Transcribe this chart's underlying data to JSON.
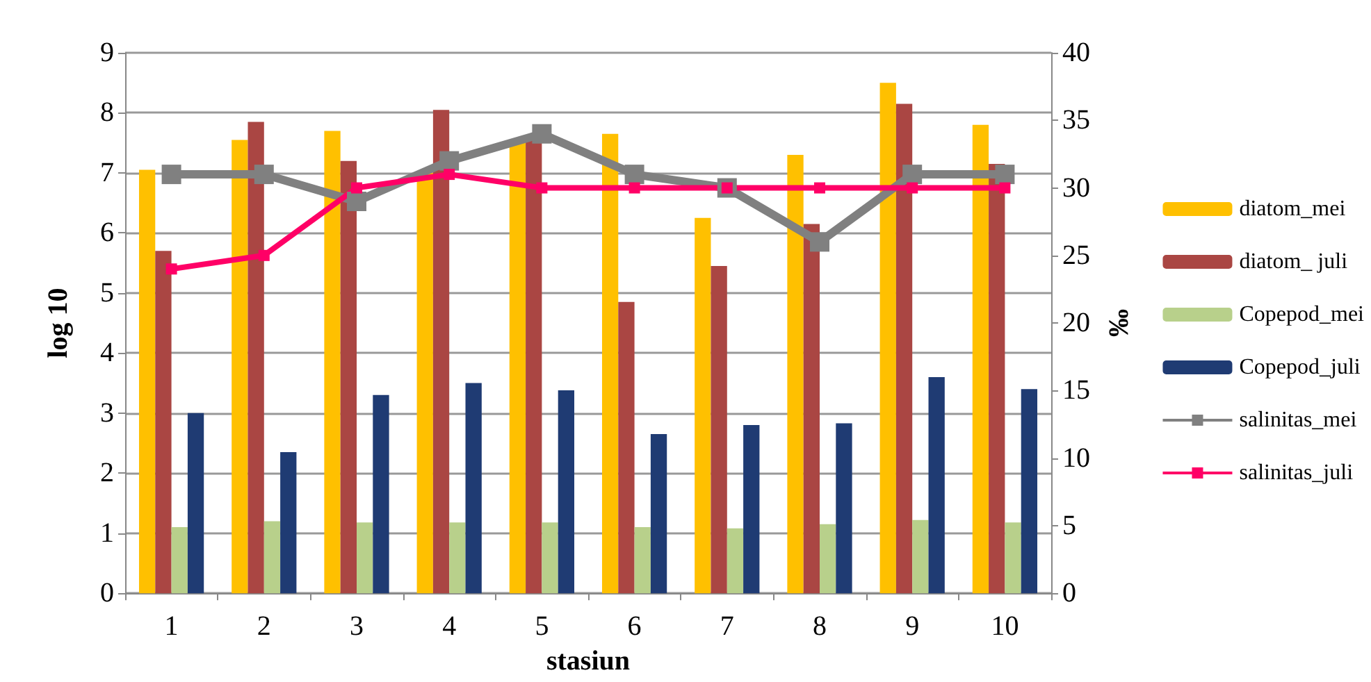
{
  "chart_data": {
    "type": "bar",
    "xlabel": "stasiun",
    "ylabel": "log 10",
    "y2label": "‰",
    "categories": [
      "1",
      "2",
      "3",
      "4",
      "5",
      "6",
      "7",
      "8",
      "9",
      "10"
    ],
    "series": [
      {
        "name": "diatom_mei",
        "color": "#ffc000",
        "values": [
          7.05,
          7.55,
          7.7,
          7.0,
          7.5,
          7.65,
          6.25,
          7.3,
          8.5,
          7.8
        ]
      },
      {
        "name": "diatom_ juli",
        "color": "#aa4643",
        "values": [
          5.7,
          7.85,
          7.2,
          8.05,
          7.6,
          4.85,
          5.45,
          6.15,
          8.15,
          7.15
        ]
      },
      {
        "name": "Copepod_mei",
        "color": "#b8d08b",
        "values": [
          1.1,
          1.2,
          1.18,
          1.18,
          1.18,
          1.1,
          1.08,
          1.15,
          1.22,
          1.18
        ]
      },
      {
        "name": "Copepod_juli",
        "color": "#1f3b73",
        "values": [
          3.0,
          2.35,
          3.3,
          3.5,
          3.38,
          2.65,
          2.8,
          2.83,
          3.6,
          3.4
        ]
      },
      {
        "name": "salinitas_mei",
        "type": "line",
        "axis": "y2",
        "color": "#808080",
        "values": [
          31,
          31,
          29,
          32,
          34,
          31,
          30,
          26,
          31,
          31
        ]
      },
      {
        "name": "salinitas_juli",
        "type": "line",
        "axis": "y2",
        "color": "#ff0066",
        "values": [
          24,
          25,
          30,
          31,
          30,
          30,
          30,
          30,
          30,
          30
        ]
      }
    ],
    "ylim": [
      0,
      9
    ],
    "yticks": [
      0,
      1,
      2,
      3,
      4,
      5,
      6,
      7,
      8,
      9
    ],
    "y2lim": [
      0,
      40
    ],
    "y2ticks": [
      0,
      5,
      10,
      15,
      20,
      25,
      30,
      35,
      40
    ],
    "grid": "y",
    "legend": "right",
    "marker": "square",
    "line_style": "solid"
  }
}
